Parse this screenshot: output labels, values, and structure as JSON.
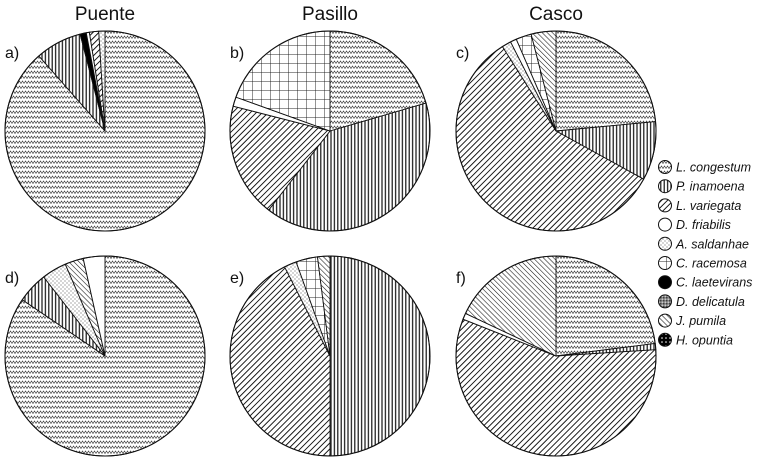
{
  "columns": [
    "Puente",
    "Pasillo",
    "Casco"
  ],
  "legend": [
    {
      "species": "L. congestum",
      "pattern": "zigzag"
    },
    {
      "species": "P. inamoena",
      "pattern": "vlines"
    },
    {
      "species": "L. variegata",
      "pattern": "diag"
    },
    {
      "species": "D. friabilis",
      "pattern": "white"
    },
    {
      "species": "A. saldanhae",
      "pattern": "dots"
    },
    {
      "species": "C. racemosa",
      "pattern": "grid"
    },
    {
      "species": "C. laetevirans",
      "pattern": "black"
    },
    {
      "species": "D. delicatula",
      "pattern": "stipple"
    },
    {
      "species": "J. pumila",
      "pattern": "diag2"
    },
    {
      "species": "H. opuntia",
      "pattern": "blackdots"
    }
  ],
  "chart_data": [
    {
      "type": "pie",
      "panel": "a)",
      "column": "Puente",
      "start_angle": 0,
      "slices": [
        {
          "species": "L. congestum",
          "pattern": "zigzag",
          "value": 88.5
        },
        {
          "species": "P. inamoena",
          "pattern": "vlines",
          "value": 7.5
        },
        {
          "species": "C. laetevirans",
          "pattern": "black",
          "value": 1
        },
        {
          "species": "D. friabilis",
          "pattern": "white",
          "value": 0.5
        },
        {
          "species": "L. variegata",
          "pattern": "diag",
          "value": 1.5
        },
        {
          "species": "A. saldanhae",
          "pattern": "dots",
          "value": 1
        }
      ]
    },
    {
      "type": "pie",
      "panel": "b)",
      "column": "Pasillo",
      "start_angle": 0,
      "slices": [
        {
          "species": "L. congestum",
          "pattern": "zigzag",
          "value": 20.5
        },
        {
          "species": "P. inamoena",
          "pattern": "vlines",
          "value": 40
        },
        {
          "species": "L. variegata",
          "pattern": "diag",
          "value": 18.5
        },
        {
          "species": "D. friabilis",
          "pattern": "white",
          "value": 1.5
        },
        {
          "species": "C. racemosa",
          "pattern": "grid",
          "value": 19.5
        }
      ]
    },
    {
      "type": "pie",
      "panel": "c)",
      "column": "Casco",
      "start_angle": 0,
      "slices": [
        {
          "species": "L. congestum",
          "pattern": "zigzag",
          "value": 23.5
        },
        {
          "species": "P. inamoena",
          "pattern": "vlines",
          "value": 9.5
        },
        {
          "species": "L. variegata",
          "pattern": "diag",
          "value": 58
        },
        {
          "species": "A. saldanhae",
          "pattern": "dots",
          "value": 1.5
        },
        {
          "species": "D. friabilis",
          "pattern": "white",
          "value": 1
        },
        {
          "species": "C. racemosa",
          "pattern": "grid",
          "value": 2.5
        },
        {
          "species": "J. pumila",
          "pattern": "diag2",
          "value": 4
        }
      ]
    },
    {
      "type": "pie",
      "panel": "d)",
      "column": "Puente",
      "start_angle": 0,
      "slices": [
        {
          "species": "L. congestum",
          "pattern": "zigzag",
          "value": 84.5
        },
        {
          "species": "P. inamoena",
          "pattern": "vlines",
          "value": 5
        },
        {
          "species": "A. saldanhae",
          "pattern": "dots",
          "value": 4
        },
        {
          "species": "J. pumila",
          "pattern": "diag2",
          "value": 3
        },
        {
          "species": "D. friabilis",
          "pattern": "white",
          "value": 3.5
        }
      ]
    },
    {
      "type": "pie",
      "panel": "e)",
      "column": "Pasillo",
      "start_angle": 0,
      "slices": [
        {
          "species": "P. inamoena",
          "pattern": "vlines",
          "value": 50
        },
        {
          "species": "L. variegata",
          "pattern": "diag",
          "value": 42.5
        },
        {
          "species": "A. saldanhae",
          "pattern": "dots",
          "value": 2
        },
        {
          "species": "C. racemosa",
          "pattern": "grid",
          "value": 3.5
        },
        {
          "species": "J. pumila",
          "pattern": "diag2",
          "value": 2
        }
      ]
    },
    {
      "type": "pie",
      "panel": "f)",
      "column": "Casco",
      "start_angle": 0,
      "slices": [
        {
          "species": "L. congestum",
          "pattern": "zigzag",
          "value": 23
        },
        {
          "species": "P. inamoena",
          "pattern": "vlines",
          "value": 1
        },
        {
          "species": "L. variegata",
          "pattern": "diag",
          "value": 57
        },
        {
          "species": "D. friabilis",
          "pattern": "white",
          "value": 1
        },
        {
          "species": "J. pumila",
          "pattern": "diag2",
          "value": 18
        }
      ]
    }
  ]
}
